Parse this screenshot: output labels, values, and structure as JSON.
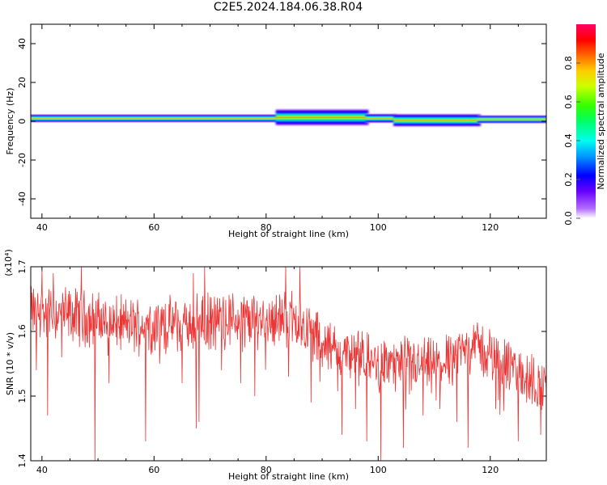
{
  "title": "C2E5.2024.184.06.38.R04",
  "chart_data": [
    {
      "type": "heatmap",
      "xlabel": "Height of straight line (km)",
      "ylabel": "Frequency (Hz)",
      "xlim": [
        38,
        130
      ],
      "ylim": [
        -50,
        50
      ],
      "x_ticks": [
        40,
        60,
        80,
        100,
        120
      ],
      "y_ticks": [
        40,
        20,
        0,
        -20,
        -40
      ],
      "colorbar": {
        "label": "Normalized spectral amplitude",
        "range": [
          0.0,
          1.0
        ],
        "ticks": [
          "0.0",
          "0.2",
          "0.4",
          "0.6",
          "0.8"
        ]
      },
      "bands": [
        {
          "x0": 38,
          "x1": 82,
          "center": 1.5,
          "half_width": 2.2
        },
        {
          "x0": 82,
          "x1": 98,
          "center": 2.0,
          "half_width": 4.5
        },
        {
          "x0": 98,
          "x1": 103,
          "center": 1.5,
          "half_width": 2.5
        },
        {
          "x0": 103,
          "x1": 118,
          "center": 0.5,
          "half_width": 3.5
        },
        {
          "x0": 118,
          "x1": 130,
          "center": 1.0,
          "half_width": 2.2
        }
      ]
    },
    {
      "type": "line",
      "xlabel": "Height of straight line (km)",
      "ylabel": "SNR (10 * v/v)",
      "y_scale_label": "(x10⁴)",
      "xlim": [
        38,
        130
      ],
      "ylim": [
        1.4,
        1.7
      ],
      "x_ticks": [
        40,
        60,
        80,
        100,
        120
      ],
      "y_ticks": [
        "1.4",
        "1.5",
        "1.6",
        "1.7"
      ],
      "line_color": "#ee3333",
      "trend": [
        {
          "x": 38,
          "y": 1.63
        },
        {
          "x": 45,
          "y": 1.625
        },
        {
          "x": 55,
          "y": 1.61
        },
        {
          "x": 65,
          "y": 1.61
        },
        {
          "x": 75,
          "y": 1.62
        },
        {
          "x": 85,
          "y": 1.62
        },
        {
          "x": 92,
          "y": 1.57
        },
        {
          "x": 100,
          "y": 1.55
        },
        {
          "x": 110,
          "y": 1.545
        },
        {
          "x": 117,
          "y": 1.58
        },
        {
          "x": 123,
          "y": 1.545
        },
        {
          "x": 130,
          "y": 1.51
        }
      ],
      "dips": [
        {
          "x": 39.0,
          "y": 1.54
        },
        {
          "x": 41.0,
          "y": 1.47
        },
        {
          "x": 43.5,
          "y": 1.56
        },
        {
          "x": 49.5,
          "y": 1.4
        },
        {
          "x": 52.0,
          "y": 1.52
        },
        {
          "x": 58.5,
          "y": 1.43
        },
        {
          "x": 61.0,
          "y": 1.55
        },
        {
          "x": 65.0,
          "y": 1.52
        },
        {
          "x": 67.5,
          "y": 1.45
        },
        {
          "x": 68.0,
          "y": 1.46
        },
        {
          "x": 72.0,
          "y": 1.54
        },
        {
          "x": 75.5,
          "y": 1.52
        },
        {
          "x": 78.0,
          "y": 1.5
        },
        {
          "x": 84.0,
          "y": 1.53
        },
        {
          "x": 88.0,
          "y": 1.49
        },
        {
          "x": 93.5,
          "y": 1.44
        },
        {
          "x": 96.0,
          "y": 1.48
        },
        {
          "x": 98.0,
          "y": 1.43
        },
        {
          "x": 100.5,
          "y": 1.4
        },
        {
          "x": 104.5,
          "y": 1.42
        },
        {
          "x": 108.0,
          "y": 1.47
        },
        {
          "x": 111.0,
          "y": 1.48
        },
        {
          "x": 114.0,
          "y": 1.46
        },
        {
          "x": 116.0,
          "y": 1.42
        },
        {
          "x": 121.0,
          "y": 1.48
        },
        {
          "x": 125.0,
          "y": 1.43
        },
        {
          "x": 126.5,
          "y": 1.49
        },
        {
          "x": 129.0,
          "y": 1.44
        }
      ],
      "peaks": [
        {
          "x": 40.0,
          "y": 1.695
        },
        {
          "x": 42.0,
          "y": 1.69
        },
        {
          "x": 47.0,
          "y": 1.7
        },
        {
          "x": 67.0,
          "y": 1.69
        },
        {
          "x": 69.0,
          "y": 1.7
        },
        {
          "x": 83.5,
          "y": 1.7
        },
        {
          "x": 86.0,
          "y": 1.7
        },
        {
          "x": 117.0,
          "y": 1.61
        }
      ]
    }
  ]
}
